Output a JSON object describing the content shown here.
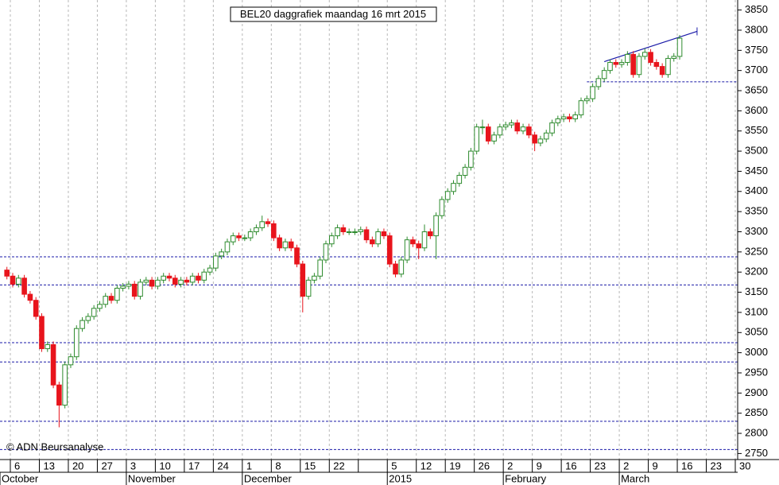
{
  "chart_data": {
    "type": "candlestick",
    "title": "BEL20 daggrafiek maandag 16 mrt 2015",
    "watermark": "© ADN Beursanalyse",
    "up_color": "#2e8b2e",
    "down_color": "#e8141c",
    "line_color": "#1a1aa8",
    "ylim": [
      2735,
      3865
    ],
    "yticks": [
      2750,
      2800,
      2850,
      2900,
      2950,
      3000,
      3050,
      3100,
      3150,
      3200,
      3250,
      3300,
      3350,
      3400,
      3450,
      3500,
      3550,
      3600,
      3650,
      3700,
      3750,
      3800,
      3850
    ],
    "xtick_labels": [
      "6",
      "13",
      "20",
      "27",
      "3",
      "10",
      "17",
      "24",
      "1",
      "8",
      "15",
      "22",
      null,
      "5",
      "12",
      "19",
      "26",
      "2",
      "9",
      "16",
      "23",
      "2",
      "9",
      "16",
      "23",
      "30"
    ],
    "month_labels": [
      "October",
      "November",
      "December",
      "2015",
      "February",
      "March"
    ],
    "hlines": [
      3672,
      3238,
      3168,
      3025,
      2977,
      2830,
      2760
    ],
    "trendline": {
      "start": [
        103,
        3722
      ],
      "end": [
        119,
        3797
      ]
    },
    "candles": [
      [
        3205,
        3213,
        3182,
        3190
      ],
      [
        3190,
        3198,
        3162,
        3170
      ],
      [
        3170,
        3193,
        3162,
        3185
      ],
      [
        3185,
        3193,
        3137,
        3145
      ],
      [
        3145,
        3153,
        3122,
        3130
      ],
      [
        3130,
        3138,
        3082,
        3090
      ],
      [
        3090,
        3098,
        3002,
        3010
      ],
      [
        3010,
        3028,
        3002,
        3020
      ],
      [
        3020,
        3028,
        2912,
        2920
      ],
      [
        2920,
        2928,
        2815,
        2870
      ],
      [
        2870,
        2978,
        2862,
        2970
      ],
      [
        2970,
        2998,
        2962,
        2990
      ],
      [
        2990,
        3068,
        2982,
        3060
      ],
      [
        3060,
        3088,
        3052,
        3080
      ],
      [
        3080,
        3098,
        3072,
        3090
      ],
      [
        3090,
        3118,
        3082,
        3110
      ],
      [
        3110,
        3128,
        3102,
        3120
      ],
      [
        3120,
        3148,
        3112,
        3140
      ],
      [
        3140,
        3148,
        3122,
        3130
      ],
      [
        3130,
        3168,
        3122,
        3160
      ],
      [
        3160,
        3173,
        3152,
        3165
      ],
      [
        3165,
        3178,
        3157,
        3170
      ],
      [
        3170,
        3178,
        3132,
        3140
      ],
      [
        3140,
        3183,
        3132,
        3175
      ],
      [
        3175,
        3188,
        3167,
        3180
      ],
      [
        3180,
        3188,
        3157,
        3165
      ],
      [
        3165,
        3188,
        3157,
        3180
      ],
      [
        3180,
        3198,
        3172,
        3190
      ],
      [
        3190,
        3198,
        3177,
        3185
      ],
      [
        3185,
        3193,
        3162,
        3170
      ],
      [
        3170,
        3188,
        3162,
        3180
      ],
      [
        3180,
        3188,
        3167,
        3175
      ],
      [
        3175,
        3198,
        3167,
        3190
      ],
      [
        3190,
        3198,
        3172,
        3180
      ],
      [
        3180,
        3208,
        3172,
        3200
      ],
      [
        3200,
        3218,
        3192,
        3210
      ],
      [
        3210,
        3248,
        3202,
        3240
      ],
      [
        3240,
        3258,
        3232,
        3250
      ],
      [
        3250,
        3283,
        3242,
        3275
      ],
      [
        3275,
        3298,
        3267,
        3290
      ],
      [
        3290,
        3298,
        3277,
        3285
      ],
      [
        3285,
        3293,
        3277,
        3285
      ],
      [
        3285,
        3308,
        3277,
        3300
      ],
      [
        3300,
        3318,
        3292,
        3310
      ],
      [
        3310,
        3340,
        3302,
        3325
      ],
      [
        3325,
        3333,
        3312,
        3320
      ],
      [
        3320,
        3328,
        3277,
        3285
      ],
      [
        3285,
        3293,
        3252,
        3260
      ],
      [
        3260,
        3283,
        3252,
        3275
      ],
      [
        3275,
        3283,
        3252,
        3260
      ],
      [
        3260,
        3268,
        3212,
        3220
      ],
      [
        3220,
        3228,
        3100,
        3140
      ],
      [
        3140,
        3188,
        3132,
        3180
      ],
      [
        3180,
        3198,
        3172,
        3190
      ],
      [
        3190,
        3238,
        3182,
        3230
      ],
      [
        3230,
        3278,
        3222,
        3270
      ],
      [
        3270,
        3298,
        3262,
        3290
      ],
      [
        3290,
        3318,
        3282,
        3310
      ],
      [
        3310,
        3318,
        3292,
        3300
      ],
      [
        3300,
        3308,
        3292,
        3300
      ],
      [
        3300,
        3308,
        3292,
        3300
      ],
      [
        3300,
        3313,
        3292,
        3305
      ],
      [
        3305,
        3313,
        3272,
        3280
      ],
      [
        3280,
        3288,
        3262,
        3270
      ],
      [
        3270,
        3308,
        3262,
        3300
      ],
      [
        3300,
        3308,
        3282,
        3290
      ],
      [
        3290,
        3298,
        3212,
        3220
      ],
      [
        3220,
        3228,
        3187,
        3195
      ],
      [
        3195,
        3238,
        3187,
        3230
      ],
      [
        3230,
        3288,
        3222,
        3280
      ],
      [
        3280,
        3288,
        3262,
        3270
      ],
      [
        3270,
        3278,
        3232,
        3260
      ],
      [
        3260,
        3318,
        3252,
        3300
      ],
      [
        3300,
        3308,
        3282,
        3290
      ],
      [
        3290,
        3348,
        3232,
        3340
      ],
      [
        3340,
        3388,
        3332,
        3380
      ],
      [
        3380,
        3408,
        3372,
        3400
      ],
      [
        3400,
        3428,
        3392,
        3420
      ],
      [
        3420,
        3448,
        3412,
        3440
      ],
      [
        3440,
        3468,
        3432,
        3460
      ],
      [
        3460,
        3508,
        3452,
        3500
      ],
      [
        3500,
        3568,
        3492,
        3560
      ],
      [
        3560,
        3578,
        3542,
        3560
      ],
      [
        3560,
        3568,
        3517,
        3525
      ],
      [
        3525,
        3548,
        3517,
        3540
      ],
      [
        3540,
        3568,
        3532,
        3560
      ],
      [
        3560,
        3573,
        3552,
        3565
      ],
      [
        3565,
        3578,
        3557,
        3570
      ],
      [
        3570,
        3578,
        3542,
        3550
      ],
      [
        3550,
        3568,
        3542,
        3560
      ],
      [
        3560,
        3568,
        3532,
        3540
      ],
      [
        3540,
        3548,
        3500,
        3520
      ],
      [
        3520,
        3538,
        3512,
        3530
      ],
      [
        3530,
        3553,
        3522,
        3545
      ],
      [
        3545,
        3578,
        3537,
        3570
      ],
      [
        3570,
        3588,
        3562,
        3580
      ],
      [
        3580,
        3593,
        3572,
        3585
      ],
      [
        3585,
        3593,
        3572,
        3580
      ],
      [
        3580,
        3598,
        3572,
        3590
      ],
      [
        3590,
        3633,
        3582,
        3625
      ],
      [
        3625,
        3638,
        3617,
        3630
      ],
      [
        3630,
        3668,
        3622,
        3660
      ],
      [
        3660,
        3688,
        3652,
        3680
      ],
      [
        3680,
        3708,
        3672,
        3700
      ],
      [
        3700,
        3728,
        3692,
        3720
      ],
      [
        3720,
        3728,
        3707,
        3715
      ],
      [
        3715,
        3728,
        3707,
        3720
      ],
      [
        3720,
        3748,
        3712,
        3740
      ],
      [
        3740,
        3748,
        3682,
        3690
      ],
      [
        3690,
        3743,
        3682,
        3735
      ],
      [
        3735,
        3755,
        3727,
        3745
      ],
      [
        3745,
        3753,
        3712,
        3720
      ],
      [
        3720,
        3728,
        3702,
        3710
      ],
      [
        3710,
        3718,
        3682,
        3690
      ],
      [
        3690,
        3738,
        3682,
        3730
      ],
      [
        3730,
        3743,
        3722,
        3735
      ],
      [
        3735,
        3788,
        3727,
        3780
      ]
    ]
  }
}
